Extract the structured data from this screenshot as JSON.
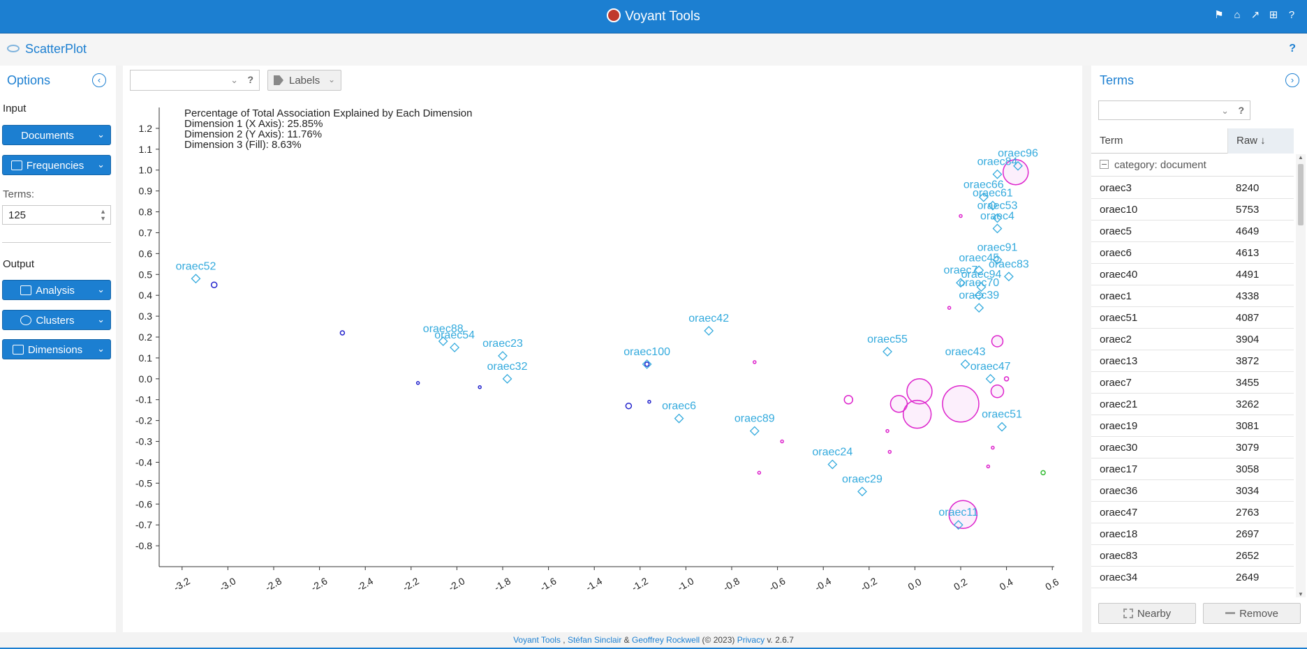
{
  "app": {
    "title": "Voyant Tools"
  },
  "panel": {
    "title": "ScatterPlot",
    "help": "?"
  },
  "options": {
    "title": "Options",
    "input_label": "Input",
    "documents_label": "Documents",
    "frequencies_label": "Frequencies",
    "terms_label": "Terms:",
    "terms_value": "125",
    "output_label": "Output",
    "analysis_label": "Analysis",
    "clusters_label": "Clusters",
    "dimensions_label": "Dimensions"
  },
  "toolbar": {
    "labels_label": "Labels",
    "help": "?"
  },
  "chart_data": {
    "type": "scatter",
    "annotations": [
      "Percentage of Total Association Explained by Each Dimension",
      "Dimension 1 (X Axis): 25.85%",
      "Dimension 2 (Y Axis): 11.76%",
      "Dimension 3 (Fill): 8.63%"
    ],
    "xlim": [
      -3.3,
      0.7
    ],
    "ylim": [
      -0.9,
      1.3
    ],
    "xticks": [
      "-3.2",
      "-3.0",
      "-2.8",
      "-2.6",
      "-2.4",
      "-2.2",
      "-2.0",
      "-1.8",
      "-1.6",
      "-1.4",
      "-1.2",
      "-1.0",
      "-0.8",
      "-0.6",
      "-0.4",
      "-0.2",
      "0.0",
      "0.2",
      "0.4",
      "0.6"
    ],
    "yticks": [
      "1.2",
      "1.1",
      "1.0",
      "0.9",
      "0.8",
      "0.7",
      "0.6",
      "0.5",
      "0.4",
      "0.3",
      "0.2",
      "0.1",
      "0.0",
      "-0.1",
      "-0.2",
      "-0.3",
      "-0.4",
      "-0.5",
      "-0.6",
      "-0.7",
      "-0.8"
    ],
    "documents": [
      {
        "label": "oraec52",
        "x": -3.14,
        "y": 0.48
      },
      {
        "label": "oraec88",
        "x": -2.06,
        "y": 0.18
      },
      {
        "label": "oraec54",
        "x": -2.01,
        "y": 0.15
      },
      {
        "label": "oraec23",
        "x": -1.8,
        "y": 0.11
      },
      {
        "label": "oraec32",
        "x": -1.78,
        "y": 0.0
      },
      {
        "label": "oraec100",
        "x": -1.17,
        "y": 0.07
      },
      {
        "label": "oraec42",
        "x": -0.9,
        "y": 0.23
      },
      {
        "label": "oraec6",
        "x": -1.03,
        "y": -0.19
      },
      {
        "label": "oraec89",
        "x": -0.7,
        "y": -0.25
      },
      {
        "label": "oraec55",
        "x": -0.12,
        "y": 0.13
      },
      {
        "label": "oraec24",
        "x": -0.36,
        "y": -0.41
      },
      {
        "label": "oraec29",
        "x": -0.23,
        "y": -0.54
      },
      {
        "label": "oraec96",
        "x": 0.45,
        "y": 1.02
      },
      {
        "label": "oraec84",
        "x": 0.36,
        "y": 0.98
      },
      {
        "label": "oraec66",
        "x": 0.3,
        "y": 0.87
      },
      {
        "label": "oraec61",
        "x": 0.34,
        "y": 0.83
      },
      {
        "label": "oraec53",
        "x": 0.36,
        "y": 0.77
      },
      {
        "label": "oraec4",
        "x": 0.36,
        "y": 0.72
      },
      {
        "label": "oraec91",
        "x": 0.36,
        "y": 0.57
      },
      {
        "label": "oraec45",
        "x": 0.28,
        "y": 0.52
      },
      {
        "label": "oraec83",
        "x": 0.41,
        "y": 0.49
      },
      {
        "label": "oraec7",
        "x": 0.2,
        "y": 0.46
      },
      {
        "label": "oraec94",
        "x": 0.29,
        "y": 0.44
      },
      {
        "label": "oraec70",
        "x": 0.28,
        "y": 0.4
      },
      {
        "label": "oraec39",
        "x": 0.28,
        "y": 0.34
      },
      {
        "label": "oraec43",
        "x": 0.22,
        "y": 0.07
      },
      {
        "label": "oraec47",
        "x": 0.33,
        "y": 0.0
      },
      {
        "label": "oraec51",
        "x": 0.38,
        "y": -0.23
      },
      {
        "label": "oraec11",
        "x": 0.19,
        "y": -0.7
      }
    ],
    "terms": [
      {
        "x": -3.06,
        "y": 0.45,
        "r": 4,
        "color": "#2222cc"
      },
      {
        "x": -2.5,
        "y": 0.22,
        "r": 3,
        "color": "#2222cc"
      },
      {
        "x": -2.17,
        "y": -0.02,
        "r": 2,
        "color": "#2222cc"
      },
      {
        "x": -1.9,
        "y": -0.04,
        "r": 2,
        "color": "#2222cc"
      },
      {
        "x": -1.25,
        "y": -0.13,
        "r": 4,
        "color": "#2222cc"
      },
      {
        "x": -1.17,
        "y": 0.07,
        "r": 3,
        "color": "#2222cc"
      },
      {
        "x": -1.16,
        "y": -0.11,
        "r": 2,
        "color": "#2222cc"
      },
      {
        "x": -0.7,
        "y": 0.08,
        "r": 2,
        "color": "#dd22cc"
      },
      {
        "x": -0.58,
        "y": -0.3,
        "r": 2,
        "color": "#dd22cc"
      },
      {
        "x": -0.68,
        "y": -0.45,
        "r": 2,
        "color": "#dd22cc"
      },
      {
        "x": -0.29,
        "y": -0.1,
        "r": 6,
        "color": "#dd22cc"
      },
      {
        "x": -0.07,
        "y": -0.12,
        "r": 12,
        "color": "#dd22cc"
      },
      {
        "x": 0.02,
        "y": -0.06,
        "r": 18,
        "color": "#dd22cc"
      },
      {
        "x": 0.01,
        "y": -0.17,
        "r": 20,
        "color": "#dd22cc"
      },
      {
        "x": 0.2,
        "y": -0.12,
        "r": 26,
        "color": "#dd22cc"
      },
      {
        "x": 0.21,
        "y": -0.65,
        "r": 20,
        "color": "#dd22cc"
      },
      {
        "x": 0.36,
        "y": -0.06,
        "r": 9,
        "color": "#dd22cc"
      },
      {
        "x": 0.36,
        "y": 0.18,
        "r": 8,
        "color": "#dd22cc"
      },
      {
        "x": 0.44,
        "y": 0.99,
        "r": 18,
        "color": "#dd22cc"
      },
      {
        "x": 0.2,
        "y": 0.78,
        "r": 2,
        "color": "#dd22cc"
      },
      {
        "x": 0.15,
        "y": 0.34,
        "r": 2,
        "color": "#dd22cc"
      },
      {
        "x": -0.12,
        "y": -0.25,
        "r": 2,
        "color": "#dd22cc"
      },
      {
        "x": -0.11,
        "y": -0.35,
        "r": 2,
        "color": "#dd22cc"
      },
      {
        "x": 0.34,
        "y": -0.33,
        "r": 2,
        "color": "#dd22cc"
      },
      {
        "x": 0.32,
        "y": -0.42,
        "r": 2,
        "color": "#dd22cc"
      },
      {
        "x": 0.4,
        "y": 0.0,
        "r": 3,
        "color": "#dd22cc"
      },
      {
        "x": 0.56,
        "y": -0.45,
        "r": 3,
        "color": "#33bb33"
      }
    ]
  },
  "terms_panel": {
    "title": "Terms",
    "col_term": "Term",
    "col_raw": "Raw ↓",
    "group_label": "category: document",
    "rows": [
      {
        "term": "oraec3",
        "raw": "8240"
      },
      {
        "term": "oraec10",
        "raw": "5753"
      },
      {
        "term": "oraec5",
        "raw": "4649"
      },
      {
        "term": "oraec6",
        "raw": "4613"
      },
      {
        "term": "oraec40",
        "raw": "4491"
      },
      {
        "term": "oraec1",
        "raw": "4338"
      },
      {
        "term": "oraec51",
        "raw": "4087"
      },
      {
        "term": "oraec2",
        "raw": "3904"
      },
      {
        "term": "oraec13",
        "raw": "3872"
      },
      {
        "term": "oraec7",
        "raw": "3455"
      },
      {
        "term": "oraec21",
        "raw": "3262"
      },
      {
        "term": "oraec19",
        "raw": "3081"
      },
      {
        "term": "oraec30",
        "raw": "3079"
      },
      {
        "term": "oraec17",
        "raw": "3058"
      },
      {
        "term": "oraec36",
        "raw": "3034"
      },
      {
        "term": "oraec47",
        "raw": "2763"
      },
      {
        "term": "oraec18",
        "raw": "2697"
      },
      {
        "term": "oraec83",
        "raw": "2652"
      },
      {
        "term": "oraec34",
        "raw": "2649"
      }
    ],
    "nearby_label": "Nearby",
    "remove_label": "Remove"
  },
  "footer": {
    "voyant": "Voyant Tools",
    "sep1": ",",
    "author1": "Stéfan Sinclair",
    "amp": "&",
    "author2": "Geoffrey Rockwell",
    "year": "(© 2023)",
    "privacy": "Privacy",
    "version": "v. 2.6.7"
  }
}
